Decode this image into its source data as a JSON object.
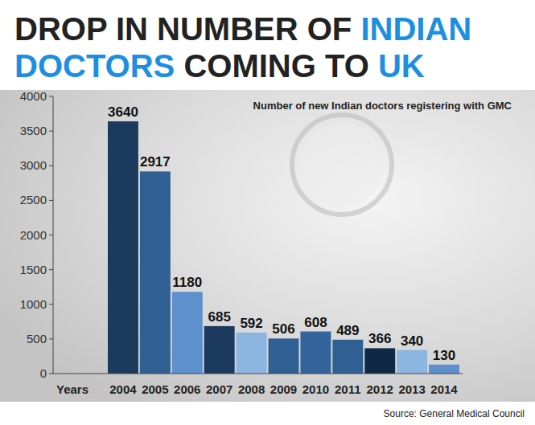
{
  "chart_data": {
    "type": "bar",
    "title": "DROP IN NUMBER OF INDIAN DOCTORS COMING TO UK",
    "subtitle": "Number of new Indian doctors registering with GMC",
    "x_label": "Years",
    "source": "Source: General Medical Council",
    "categories": [
      "2004",
      "2005",
      "2006",
      "2007",
      "2008",
      "2009",
      "2010",
      "2011",
      "2012",
      "2013",
      "2014"
    ],
    "values": [
      3640,
      2917,
      1180,
      685,
      592,
      506,
      608,
      489,
      366,
      340,
      130
    ],
    "colors": [
      "#1c3a5e",
      "#2f5f93",
      "#5d90cc",
      "#1c3a5e",
      "#8db5e2",
      "#2f5f93",
      "#33659c",
      "#2f5f93",
      "#0f2843",
      "#8db5e2",
      "#5d90cc"
    ],
    "ylim": [
      0,
      4000
    ],
    "yticks": [
      0,
      500,
      1000,
      1500,
      2000,
      2500,
      3000,
      3500,
      4000
    ],
    "data_labels": true,
    "grid": false
  }
}
